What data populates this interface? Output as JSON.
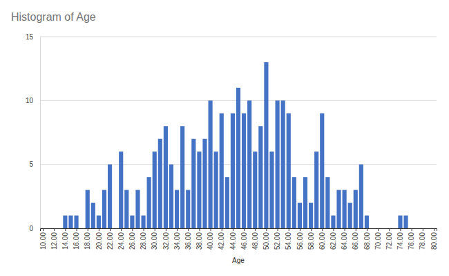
{
  "chart_data": {
    "type": "histogram",
    "title": "Histogram of Age",
    "x_label": "Age",
    "color": "#4472c4",
    "grid": true,
    "bins": [
      9.5,
      10.5,
      11.5,
      12.5,
      13.5,
      14.5,
      15.5,
      16.5,
      17.5,
      18.5,
      19.5,
      20.5,
      21.5,
      22.5,
      23.5,
      24.5,
      25.5,
      26.5,
      27.5,
      28.5,
      29.5,
      30.5,
      31.5,
      32.5,
      33.5,
      34.5,
      35.5,
      36.5,
      37.5,
      38.5,
      39.5,
      40.5,
      41.5,
      42.5,
      43.5,
      44.5,
      45.5,
      46.5,
      47.5,
      48.5,
      49.5,
      50.5,
      51.5,
      52.5,
      53.5,
      54.5,
      55.5,
      56.5,
      57.5,
      58.5,
      59.5,
      60.5,
      61.5,
      62.5,
      63.5,
      64.5,
      65.5,
      66.5,
      67.5,
      68.5,
      69.5,
      70.5,
      71.5,
      72.5,
      73.5,
      74.5,
      75.5,
      76.5,
      77.5,
      78.5,
      79.5,
      80.5
    ],
    "values": [
      0,
      0,
      0,
      0,
      1,
      1,
      1,
      0,
      3,
      2,
      1,
      3,
      5,
      0,
      6,
      3,
      1,
      3,
      1,
      4,
      6,
      7,
      8,
      5,
      3,
      8,
      3,
      7,
      6,
      7,
      10,
      6,
      9,
      4,
      9,
      11,
      9,
      10,
      6,
      8,
      13,
      6,
      10,
      10,
      9,
      4,
      2,
      4,
      2,
      6,
      9,
      4,
      1,
      3,
      3,
      2,
      3,
      5,
      1,
      0,
      0,
      0,
      0,
      0,
      1,
      1,
      0,
      0,
      0,
      0,
      0
    ],
    "xlim": [
      9.5,
      80.5
    ],
    "xticks": [
      {
        "value": 10,
        "label": "10.00"
      },
      {
        "value": 12,
        "label": "12.00"
      },
      {
        "value": 14,
        "label": "14.00"
      },
      {
        "value": 16,
        "label": "16.00"
      },
      {
        "value": 18,
        "label": "18.00"
      },
      {
        "value": 20,
        "label": "20.00"
      },
      {
        "value": 22,
        "label": "22.00"
      },
      {
        "value": 24,
        "label": "24.00"
      },
      {
        "value": 26,
        "label": "26.00"
      },
      {
        "value": 28,
        "label": "28.00"
      },
      {
        "value": 30,
        "label": "30.00"
      },
      {
        "value": 32,
        "label": "32.00"
      },
      {
        "value": 34,
        "label": "34.00"
      },
      {
        "value": 36,
        "label": "36.00"
      },
      {
        "value": 38,
        "label": "38.00"
      },
      {
        "value": 40,
        "label": "40.00"
      },
      {
        "value": 42,
        "label": "42.00"
      },
      {
        "value": 44,
        "label": "44.00"
      },
      {
        "value": 46,
        "label": "46.00"
      },
      {
        "value": 48,
        "label": "48.00"
      },
      {
        "value": 50,
        "label": "50.00"
      },
      {
        "value": 52,
        "label": "52.00"
      },
      {
        "value": 54,
        "label": "54.00"
      },
      {
        "value": 56,
        "label": "56.00"
      },
      {
        "value": 58,
        "label": "58.00"
      },
      {
        "value": 60,
        "label": "60.00"
      },
      {
        "value": 62,
        "label": "62.00"
      },
      {
        "value": 64,
        "label": "64.00"
      },
      {
        "value": 66,
        "label": "66.00"
      },
      {
        "value": 68,
        "label": "68.00"
      },
      {
        "value": 70,
        "label": "70.00"
      },
      {
        "value": 72,
        "label": "72.00"
      },
      {
        "value": 74,
        "label": "74.00"
      },
      {
        "value": 76,
        "label": "76.00"
      },
      {
        "value": 78,
        "label": "78.00"
      },
      {
        "value": 80,
        "label": "80.00"
      }
    ],
    "ylim": [
      0,
      15
    ],
    "yticks": [
      0,
      5,
      10,
      15
    ]
  }
}
